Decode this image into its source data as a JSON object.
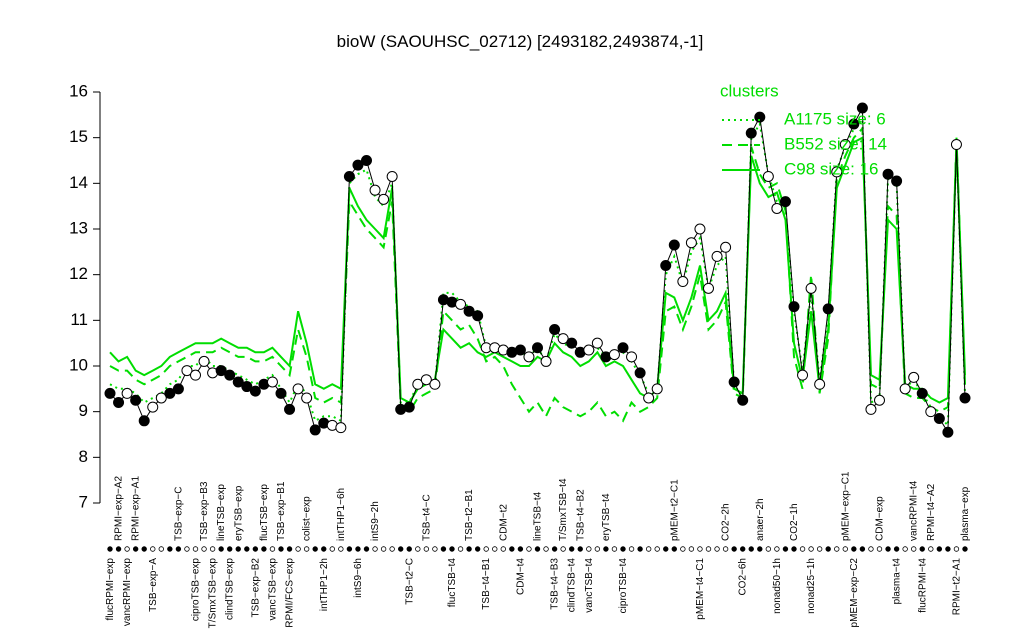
{
  "chart_data": {
    "type": "line",
    "title": "bioW (SAOUHSC_02712) [2493182,2493874,-1]",
    "ylim": [
      7,
      16
    ],
    "yticks": [
      7,
      8,
      9,
      10,
      11,
      12,
      13,
      14,
      15,
      16
    ],
    "color": "#000000",
    "legend_title": "clusters",
    "legend_position": "top-right",
    "categories": [
      "flucRPMI−exp",
      "RPMI−exp−A2",
      "vancRPMI−exp",
      "RPMI−exp−A1",
      null,
      "TSB−exp−A",
      null,
      null,
      "TSB−exp−C",
      null,
      "ciproTSB−exp",
      "TSB−exp−B3",
      "T/SmxTSB−exp",
      "lineTSB−exp",
      "clindTSB−exp",
      "eryTSB−exp",
      null,
      "TSB−exp−B2",
      "flucTSB−exp",
      "vancTSB−exp",
      "TSB−exp−B1",
      "RPMI/FCS−exp",
      null,
      "colist−exp",
      null,
      "intTHP1−2h",
      null,
      "intTHP1−6h",
      null,
      "intS9−6h",
      null,
      "intS9−2h",
      null,
      null,
      null,
      "TSB−t2−C",
      null,
      "TSB−t4−C",
      null,
      null,
      "flucTSB−t4",
      null,
      "TSB−t2−B1",
      null,
      "TSB−t4−B1",
      null,
      "CDM−t2",
      null,
      "CDM−t4",
      null,
      "lineTSB−t4",
      null,
      "TSB−t4−B3",
      "T/SmxTSB−t4",
      "clindTSB−t4",
      "TSB−t4−B2",
      "vancTSB−t4",
      null,
      "eryTSB−t4",
      null,
      "ciproTSB−t4",
      null,
      null,
      null,
      null,
      null,
      "pMEM−t2−C1",
      null,
      null,
      "pMEM−t4−C1",
      null,
      null,
      "CO2−2h",
      null,
      "CO2−6h",
      null,
      "anaer−2h",
      null,
      "nonad50−1h",
      null,
      "CO2−1h",
      null,
      "nonad25−1h",
      null,
      null,
      null,
      "pMEM−exp−C1",
      "pMEM−exp−C2",
      null,
      null,
      "CDM−exp",
      null,
      "plasma−t4",
      null,
      "vancRPMI−t4",
      "flucRPMI−t4",
      "RPMI−t4−A2",
      null,
      null,
      "RPMI−t2−A1",
      "plasma−exp"
    ],
    "values": [
      9.4,
      9.2,
      9.4,
      9.25,
      8.8,
      9.1,
      9.3,
      9.4,
      9.5,
      9.9,
      9.8,
      10.1,
      9.85,
      9.9,
      9.8,
      9.65,
      9.55,
      9.45,
      9.6,
      9.65,
      9.4,
      9.05,
      9.5,
      9.3,
      8.6,
      8.75,
      8.7,
      8.65,
      14.15,
      14.4,
      14.5,
      13.85,
      13.65,
      14.15,
      9.05,
      9.1,
      9.6,
      9.7,
      9.6,
      11.45,
      11.4,
      11.35,
      11.2,
      11.1,
      10.4,
      10.4,
      10.35,
      10.3,
      10.35,
      10.2,
      10.4,
      10.1,
      10.8,
      10.6,
      10.5,
      10.3,
      10.35,
      10.5,
      10.2,
      10.25,
      10.4,
      10.2,
      9.85,
      9.3,
      9.5,
      12.2,
      12.65,
      11.85,
      12.7,
      13.0,
      11.7,
      12.4,
      12.6,
      9.65,
      9.25,
      15.1,
      15.45,
      14.15,
      13.45,
      13.6,
      11.3,
      9.8,
      11.7,
      9.6,
      11.25,
      14.25,
      14.85,
      15.3,
      15.65,
      9.05,
      9.25,
      14.2,
      14.05,
      9.5,
      9.75,
      9.4,
      9.0,
      8.85,
      8.55,
      14.85,
      9.3
    ],
    "marker_filled": [
      true,
      true,
      false,
      true,
      true,
      false,
      false,
      true,
      true,
      false,
      false,
      false,
      false,
      true,
      true,
      true,
      true,
      true,
      true,
      false,
      true,
      true,
      false,
      false,
      true,
      true,
      false,
      false,
      true,
      true,
      true,
      false,
      false,
      false,
      true,
      true,
      false,
      false,
      false,
      true,
      true,
      false,
      true,
      true,
      false,
      false,
      false,
      true,
      true,
      false,
      true,
      false,
      true,
      false,
      true,
      true,
      false,
      false,
      true,
      false,
      true,
      false,
      true,
      false,
      false,
      true,
      true,
      false,
      false,
      false,
      false,
      false,
      false,
      true,
      true,
      true,
      true,
      false,
      false,
      true,
      true,
      false,
      false,
      false,
      true,
      false,
      false,
      true,
      true,
      false,
      false,
      true,
      true,
      false,
      false,
      true,
      false,
      true,
      true,
      false,
      true
    ],
    "series": [
      {
        "name": "A1175 size: 6",
        "color": "#00dd00",
        "dash": "dotted",
        "values": [
          9.6,
          9.5,
          9.5,
          9.4,
          9.2,
          9.3,
          9.4,
          9.6,
          9.7,
          10.0,
          10.0,
          10.2,
          10.0,
          10.0,
          9.9,
          9.8,
          9.7,
          9.6,
          9.7,
          9.8,
          9.5,
          9.2,
          9.6,
          9.4,
          8.8,
          8.9,
          8.9,
          8.8,
          14.0,
          14.2,
          14.3,
          13.7,
          13.5,
          14.0,
          9.2,
          9.2,
          9.6,
          9.7,
          9.6,
          11.6,
          11.6,
          11.4,
          11.3,
          11.2,
          10.4,
          10.4,
          10.3,
          10.3,
          10.3,
          10.2,
          10.4,
          10.1,
          10.7,
          10.5,
          10.4,
          10.3,
          10.3,
          10.4,
          10.2,
          10.2,
          10.3,
          10.1,
          9.8,
          9.4,
          9.5,
          12.0,
          12.4,
          11.8,
          12.5,
          12.8,
          11.7,
          12.2,
          12.4,
          9.6,
          9.3,
          15.0,
          15.3,
          14.2,
          13.6,
          13.5,
          11.2,
          9.9,
          11.6,
          9.7,
          11.1,
          14.3,
          14.8,
          15.2,
          15.4,
          9.2,
          9.3,
          14.1,
          14.0,
          9.5,
          9.7,
          9.4,
          9.1,
          8.9,
          8.7,
          14.9,
          9.4
        ]
      },
      {
        "name": "B552 size: 14",
        "color": "#00dd00",
        "dash": "dashed",
        "values": [
          10.0,
          9.9,
          9.9,
          9.7,
          9.6,
          9.7,
          9.8,
          10.0,
          10.1,
          10.2,
          10.3,
          10.3,
          10.3,
          10.4,
          10.3,
          10.2,
          10.2,
          10.1,
          10.1,
          10.2,
          10.0,
          9.8,
          10.8,
          10.2,
          9.3,
          9.2,
          9.3,
          9.2,
          13.6,
          13.3,
          13.0,
          12.8,
          12.6,
          13.6,
          9.1,
          9.0,
          9.3,
          9.4,
          9.5,
          11.2,
          11.0,
          10.8,
          10.9,
          10.6,
          10.1,
          10.2,
          10.0,
          9.6,
          9.3,
          9.0,
          9.2,
          8.9,
          9.3,
          9.1,
          9.0,
          8.9,
          9.0,
          9.2,
          8.9,
          9.0,
          8.8,
          9.2,
          9.0,
          9.1,
          9.3,
          11.2,
          11.3,
          10.8,
          11.3,
          12.0,
          10.8,
          11.0,
          11.4,
          9.4,
          9.3,
          14.8,
          14.2,
          13.9,
          14.0,
          13.4,
          10.2,
          9.5,
          12.0,
          9.4,
          10.6,
          14.1,
          14.6,
          15.0,
          15.2,
          9.6,
          9.5,
          13.5,
          13.3,
          9.4,
          9.3,
          9.3,
          9.1,
          9.0,
          9.1,
          15.0,
          9.6
        ]
      },
      {
        "name": "C98 size: 16",
        "color": "#00dd00",
        "dash": "solid",
        "values": [
          10.3,
          10.1,
          10.2,
          9.9,
          9.8,
          9.9,
          10.0,
          10.2,
          10.3,
          10.4,
          10.5,
          10.5,
          10.5,
          10.6,
          10.5,
          10.4,
          10.4,
          10.3,
          10.3,
          10.4,
          10.2,
          10.0,
          11.2,
          10.5,
          9.6,
          9.5,
          9.6,
          9.5,
          13.9,
          13.5,
          13.2,
          13.0,
          12.8,
          13.9,
          9.3,
          9.2,
          9.5,
          9.6,
          9.7,
          10.8,
          10.6,
          10.4,
          10.5,
          10.3,
          10.2,
          10.3,
          10.2,
          10.1,
          10.0,
          10.0,
          10.2,
          10.1,
          10.5,
          10.3,
          10.2,
          10.0,
          10.1,
          10.3,
          10.0,
          10.1,
          10.0,
          9.7,
          9.4,
          9.3,
          9.5,
          11.6,
          11.5,
          11.0,
          11.5,
          12.2,
          11.0,
          11.2,
          11.6,
          9.5,
          9.4,
          14.6,
          14.0,
          13.7,
          13.8,
          13.2,
          10.5,
          9.7,
          11.2,
          9.5,
          10.8,
          13.9,
          14.4,
          14.9,
          15.0,
          9.8,
          9.7,
          13.2,
          13.0,
          9.6,
          9.5,
          9.5,
          9.3,
          9.2,
          9.3,
          14.9,
          9.8
        ]
      }
    ]
  }
}
